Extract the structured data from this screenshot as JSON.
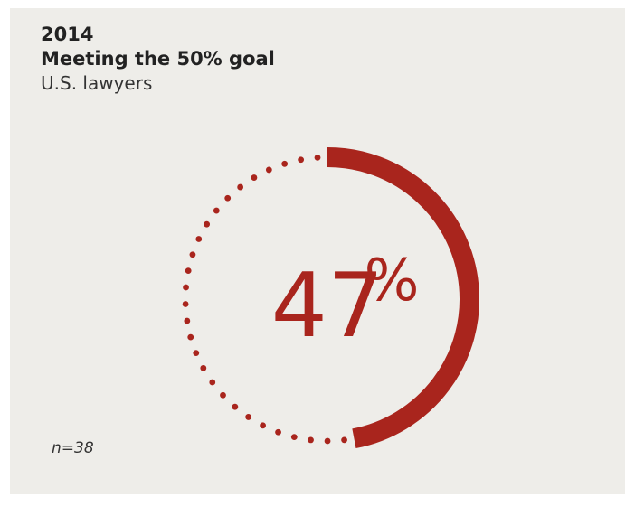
{
  "header": {
    "year": "2014",
    "title": "Meeting the 50% goal",
    "subtitle": "U.S. lawyers"
  },
  "footer": {
    "sample_size": "n=38"
  },
  "colors": {
    "accent": "#a9251d",
    "background": "#eeede9",
    "text": "#222222"
  },
  "chart_data": {
    "type": "pie",
    "style": "progress-ring",
    "value": 47,
    "goal": 50,
    "value_label": "47",
    "unit_label": "%",
    "filled_color": "#a9251d",
    "remaining_style": "dotted",
    "legend": "none",
    "grid": false
  }
}
